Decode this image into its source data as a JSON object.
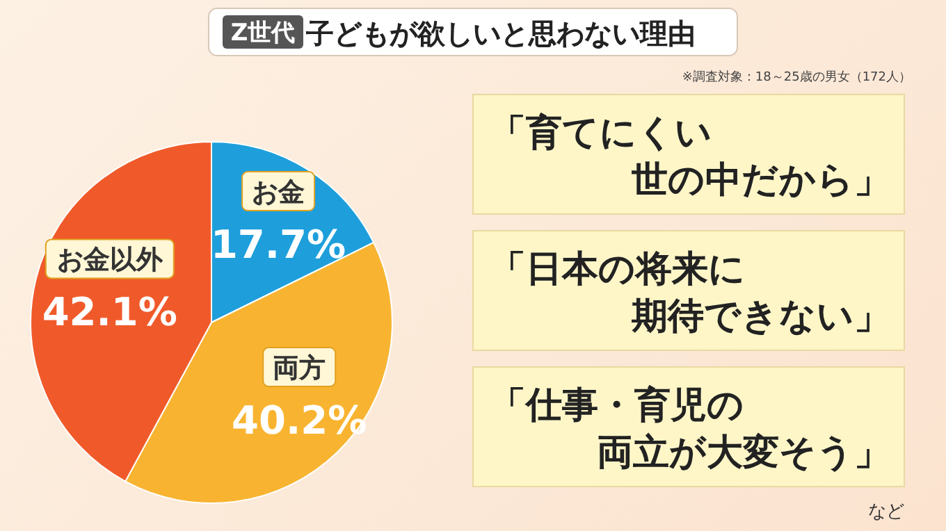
{
  "chart_data": {
    "type": "pie",
    "subtitle": "Z世代",
    "title": "子どもが欲しいと思わない理由",
    "categories": [
      "お金",
      "両方",
      "お金以外"
    ],
    "values": [
      17.7,
      40.2,
      42.1
    ],
    "value_labels": [
      "17.7%",
      "40.2%",
      "42.1%"
    ],
    "colors": [
      "#1e9fdc",
      "#f8b431",
      "#f05a2a"
    ],
    "annotations": [
      "※調査対象：18～25歳の男女（172人）",
      "「育てにくい",
      "世の中だから」",
      "「日本の将来に",
      "期待できない」",
      "「仕事・育児の",
      "両立が大変そう」",
      "など"
    ]
  }
}
